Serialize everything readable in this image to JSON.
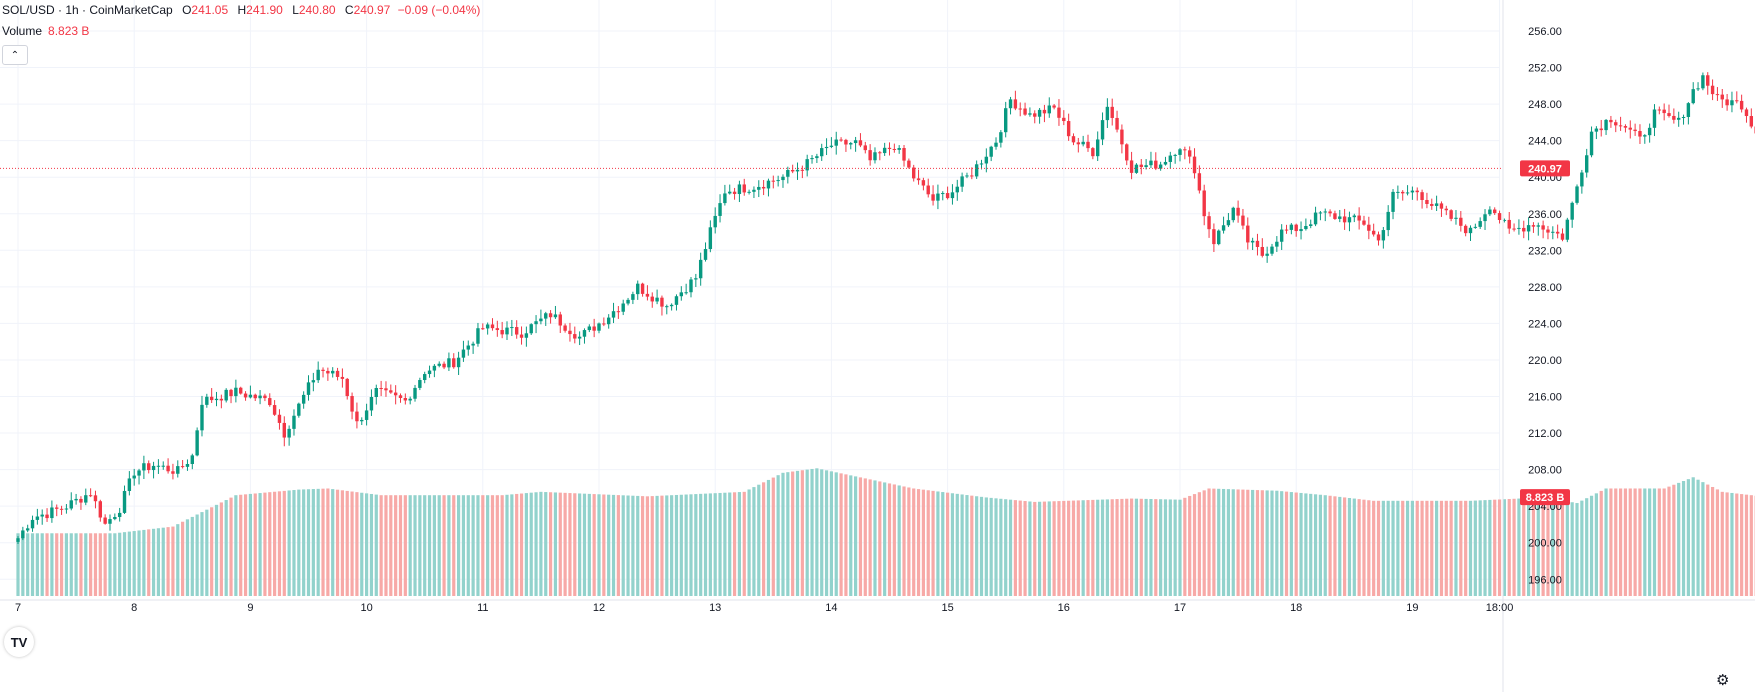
{
  "header": {
    "symbol": "SOL/USD · 1h · CoinMarketCap",
    "o_label": "O",
    "o_value": "241.05",
    "h_label": "H",
    "h_value": "241.90",
    "l_label": "L",
    "l_value": "240.80",
    "c_label": "C",
    "c_value": "240.97",
    "change": "−0.09 (−0.04%)"
  },
  "volume_legend": {
    "label": "Volume",
    "value": "8.823 B"
  },
  "colors": {
    "up": "#089981",
    "down": "#f23645",
    "vol_up": "#92d2cc",
    "vol_down": "#f7a9a7",
    "grid": "#f0f3fa"
  },
  "icons": {
    "collapse": "chevron-up-icon",
    "logo": "tradingview-logo-icon",
    "settings": "gear-icon"
  },
  "chart_data": {
    "type": "candlestick",
    "interval": "1h",
    "ylim": [
      194,
      258
    ],
    "y_ticks": [
      "196.00",
      "200.00",
      "204.00",
      "208.00",
      "212.00",
      "216.00",
      "220.00",
      "224.00",
      "228.00",
      "232.00",
      "236.00",
      "240.00",
      "244.00",
      "248.00",
      "252.00",
      "256.00"
    ],
    "x_ticks": [
      {
        "label": "7",
        "day": 0
      },
      {
        "label": "8",
        "day": 1
      },
      {
        "label": "9",
        "day": 2
      },
      {
        "label": "10",
        "day": 3
      },
      {
        "label": "11",
        "day": 4
      },
      {
        "label": "12",
        "day": 5
      },
      {
        "label": "13",
        "day": 6
      },
      {
        "label": "14",
        "day": 7
      },
      {
        "label": "15",
        "day": 8
      },
      {
        "label": "16",
        "day": 9
      },
      {
        "label": "17",
        "day": 10
      },
      {
        "label": "18",
        "day": 11
      },
      {
        "label": "19",
        "day": 12
      },
      {
        "label": "18:00",
        "day": 12.75
      }
    ],
    "first_candle_day": 0.0,
    "last_price": 240.97,
    "last_price_label": "240.97",
    "volume_label": "8.823 B",
    "close_anchors": [
      [
        0,
        200.5
      ],
      [
        3,
        202.8
      ],
      [
        6,
        203.2
      ],
      [
        10,
        204.0
      ],
      [
        15,
        205.5
      ],
      [
        18,
        202.0
      ],
      [
        21,
        203.8
      ],
      [
        24,
        207.8
      ],
      [
        28,
        208.5
      ],
      [
        33,
        207.8
      ],
      [
        36,
        209.5
      ],
      [
        38,
        215.5
      ],
      [
        45,
        216.5
      ],
      [
        52,
        215.5
      ],
      [
        55,
        212.0
      ],
      [
        58,
        215.0
      ],
      [
        62,
        219.0
      ],
      [
        67,
        218.0
      ],
      [
        70,
        213.0
      ],
      [
        74,
        216.5
      ],
      [
        80,
        215.5
      ],
      [
        84,
        218.8
      ],
      [
        90,
        219.8
      ],
      [
        96,
        223.5
      ],
      [
        104,
        223.0
      ],
      [
        110,
        225.0
      ],
      [
        116,
        222.5
      ],
      [
        120,
        224.0
      ],
      [
        124,
        225.8
      ],
      [
        128,
        228.0
      ],
      [
        134,
        226.0
      ],
      [
        140,
        229.0
      ],
      [
        143,
        234.0
      ],
      [
        146,
        238.5
      ],
      [
        152,
        239.0
      ],
      [
        158,
        240.0
      ],
      [
        163,
        241.5
      ],
      [
        168,
        243.5
      ],
      [
        173,
        243.8
      ],
      [
        176,
        241.8
      ],
      [
        181,
        243.5
      ],
      [
        185,
        240.0
      ],
      [
        189,
        237.5
      ],
      [
        193,
        238.5
      ],
      [
        197,
        240.5
      ],
      [
        202,
        244.0
      ],
      [
        205,
        248.5
      ],
      [
        209,
        246.8
      ],
      [
        214,
        247.5
      ],
      [
        218,
        244.0
      ],
      [
        222,
        242.8
      ],
      [
        225,
        248.0
      ],
      [
        230,
        241.0
      ],
      [
        236,
        241.5
      ],
      [
        240,
        243.5
      ],
      [
        243,
        241.0
      ],
      [
        245,
        236.0
      ],
      [
        247,
        233.0
      ],
      [
        251,
        236.5
      ],
      [
        254,
        233.0
      ],
      [
        257,
        231.5
      ],
      [
        261,
        234.0
      ],
      [
        265,
        234.5
      ],
      [
        269,
        236.0
      ],
      [
        274,
        235.5
      ],
      [
        278,
        235.0
      ],
      [
        281,
        233.0
      ],
      [
        284,
        238.0
      ],
      [
        289,
        238.5
      ],
      [
        292,
        237.0
      ],
      [
        296,
        235.5
      ],
      [
        300,
        234.0
      ],
      [
        304,
        237.0
      ],
      [
        308,
        234.0
      ],
      [
        313,
        235.0
      ],
      [
        317,
        234.0
      ],
      [
        319,
        233.5
      ],
      [
        321,
        237.0
      ],
      [
        323,
        241.0
      ],
      [
        325,
        245.0
      ],
      [
        329,
        246.5
      ],
      [
        332,
        245.5
      ],
      [
        335,
        244.0
      ],
      [
        338,
        247.0
      ],
      [
        343,
        246.0
      ],
      [
        346,
        249.5
      ],
      [
        348,
        251.0
      ],
      [
        351,
        248.5
      ],
      [
        356,
        248.0
      ],
      [
        360,
        244.0
      ],
      [
        364,
        245.0
      ],
      [
        367,
        242.5
      ],
      [
        369,
        240.97
      ]
    ],
    "volume_anchors_billions": [
      [
        0,
        5.6
      ],
      [
        20,
        5.6
      ],
      [
        32,
        6.2
      ],
      [
        45,
        9.0
      ],
      [
        58,
        9.5
      ],
      [
        64,
        9.6
      ],
      [
        75,
        9.0
      ],
      [
        100,
        9.0
      ],
      [
        108,
        9.3
      ],
      [
        130,
        8.9
      ],
      [
        150,
        9.3
      ],
      [
        158,
        11.0
      ],
      [
        165,
        11.4
      ],
      [
        175,
        10.5
      ],
      [
        185,
        9.6
      ],
      [
        200,
        8.8
      ],
      [
        210,
        8.4
      ],
      [
        230,
        8.7
      ],
      [
        240,
        8.6
      ],
      [
        246,
        9.6
      ],
      [
        260,
        9.4
      ],
      [
        270,
        9.0
      ],
      [
        280,
        8.5
      ],
      [
        300,
        8.5
      ],
      [
        315,
        8.8
      ],
      [
        322,
        8.3
      ],
      [
        328,
        9.6
      ],
      [
        340,
        9.6
      ],
      [
        346,
        10.6
      ],
      [
        352,
        9.3
      ],
      [
        360,
        8.9
      ],
      [
        369,
        8.823
      ]
    ],
    "volume_scale_max_billions": 14
  }
}
